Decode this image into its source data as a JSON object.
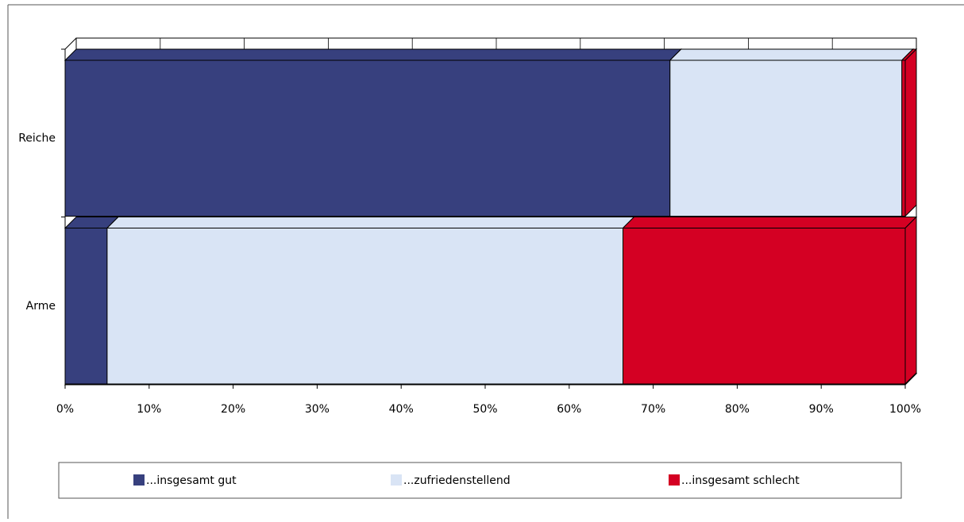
{
  "chart_data": {
    "type": "stacked-bar-3d",
    "categories": [
      "Reiche",
      "Arme"
    ],
    "series": [
      {
        "name": "...insgesamt gut",
        "color": "#37407e",
        "values": [
          72,
          5
        ]
      },
      {
        "name": "...zufriedenstellend",
        "color": "#d9e4f5",
        "values": [
          27.6,
          61.4
        ]
      },
      {
        "name": "...insgesamt schlecht",
        "color": "#d40023",
        "values": [
          0.4,
          33.6
        ]
      }
    ],
    "xlim": [
      0,
      100
    ],
    "xticks": [
      {
        "value": 0,
        "label": "0%"
      },
      {
        "value": 10,
        "label": "10%"
      },
      {
        "value": 20,
        "label": "20%"
      },
      {
        "value": 30,
        "label": "30%"
      },
      {
        "value": 40,
        "label": "40%"
      },
      {
        "value": 50,
        "label": "50%"
      },
      {
        "value": 60,
        "label": "60%"
      },
      {
        "value": 70,
        "label": "70%"
      },
      {
        "value": 80,
        "label": "80%"
      },
      {
        "value": 90,
        "label": "90%"
      },
      {
        "value": 100,
        "label": "100%"
      }
    ],
    "grid": true,
    "legend": "bottom"
  }
}
